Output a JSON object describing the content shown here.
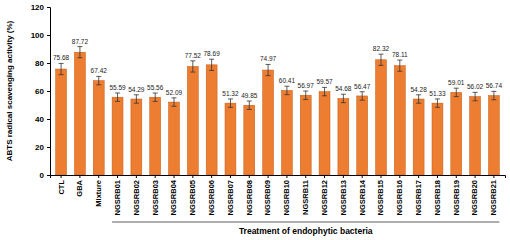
{
  "chart_data": {
    "type": "bar",
    "y_label": "ABTS radical scavenging activity (%)",
    "x_label": "Treatment of endophytic bacteria",
    "categories": [
      "CTL",
      "GBA",
      "Mixture",
      "NGSRB01",
      "NGSRB02",
      "NGSRB03",
      "NGSRB04",
      "NGSRB05",
      "NGSRB06",
      "NGSRB07",
      "NGSRB08",
      "NGSRB09",
      "NGSRB10",
      "NGSRB11",
      "NGSRB12",
      "NGSRB13",
      "NGSRB14",
      "NGSRB15",
      "NGSRB16",
      "NGSRB17",
      "NGSRB18",
      "NGSRB19",
      "NGSRB20",
      "NGSRB21"
    ],
    "values": [
      75.68,
      87.72,
      67.42,
      55.59,
      54.29,
      55.56,
      52.09,
      77.52,
      78.69,
      51.32,
      49.85,
      74.97,
      60.41,
      56.97,
      59.57,
      54.68,
      56.47,
      82.32,
      78.11,
      54.28,
      51.33,
      59.01,
      56.02,
      56.74
    ],
    "errors": [
      4,
      4,
      3,
      3,
      3,
      3,
      3,
      4,
      4,
      3,
      3,
      4,
      3,
      3,
      3,
      3,
      3,
      4,
      4,
      3,
      3,
      3,
      3,
      3
    ],
    "color": "#ed7d31",
    "ylim": [
      0,
      120
    ],
    "yticks": [
      0,
      20,
      40,
      60,
      80,
      100,
      120
    ],
    "grid": false,
    "data_labels": true
  }
}
